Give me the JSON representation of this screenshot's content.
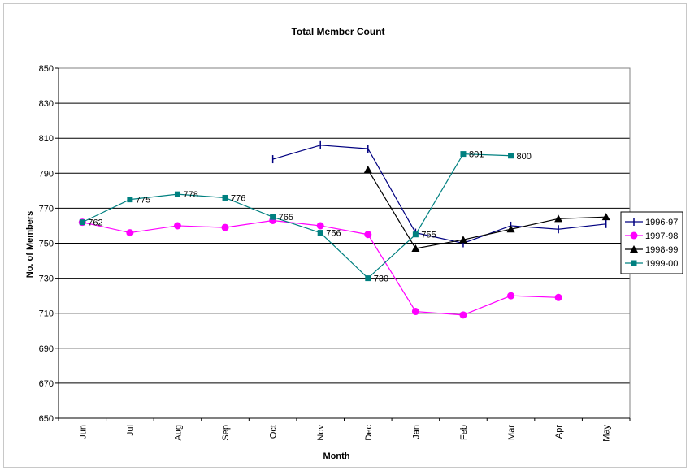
{
  "chart_data": {
    "type": "line",
    "title": "Total Member Count",
    "xlabel": "Month",
    "ylabel": "No. of Members",
    "categories": [
      "Jun",
      "Jul",
      "Aug",
      "Sep",
      "Oct",
      "Nov",
      "Dec",
      "Jan",
      "Feb",
      "Mar",
      "Apr",
      "May"
    ],
    "ylim": [
      650,
      850
    ],
    "yticks": [
      650,
      670,
      690,
      710,
      730,
      750,
      770,
      790,
      810,
      830,
      850
    ],
    "grid": "horizontal",
    "legend_position": "right",
    "series": [
      {
        "name": "1996-97",
        "color": "#000080",
        "marker": "diamond",
        "values": [
          null,
          null,
          null,
          null,
          798,
          806,
          804,
          756,
          750,
          760,
          758,
          761
        ],
        "labeled": false
      },
      {
        "name": "1997-98",
        "color": "#ff00ff",
        "marker": "circle",
        "values": [
          762,
          756,
          760,
          759,
          763,
          760,
          755,
          711,
          709,
          720,
          719,
          null
        ],
        "labeled": false
      },
      {
        "name": "1998-99",
        "color": "#000000",
        "marker": "triangle",
        "values": [
          null,
          null,
          null,
          null,
          null,
          null,
          792,
          747,
          752,
          758,
          764,
          765
        ],
        "labeled": false
      },
      {
        "name": "1999-00",
        "color": "#008080",
        "marker": "square",
        "values": [
          762,
          775,
          778,
          776,
          765,
          756,
          730,
          755,
          801,
          800,
          null,
          null
        ],
        "labeled": true
      }
    ]
  }
}
